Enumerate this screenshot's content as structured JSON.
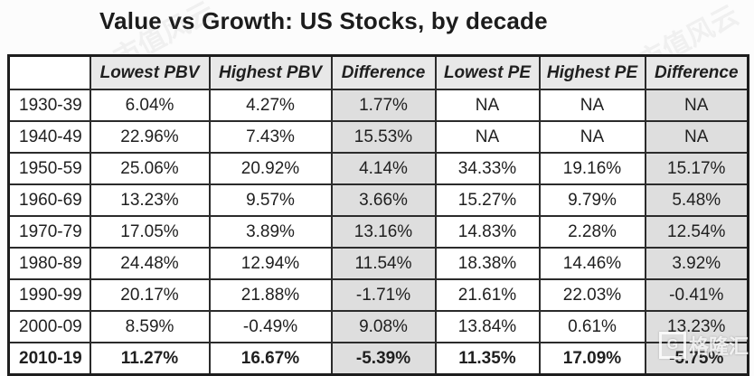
{
  "title": "Value vs Growth: US Stocks, by decade",
  "chart_data": {
    "type": "table",
    "title": "Value vs Growth: US Stocks, by decade",
    "columns": [
      "",
      "Lowest PBV",
      "Highest PBV",
      "Difference",
      "Lowest PE",
      "Highest PE",
      "Difference"
    ],
    "rows": [
      [
        "1930-39",
        "6.04%",
        "4.27%",
        "1.77%",
        "NA",
        "NA",
        "NA"
      ],
      [
        "1940-49",
        "22.96%",
        "7.43%",
        "15.53%",
        "NA",
        "NA",
        "NA"
      ],
      [
        "1950-59",
        "25.06%",
        "20.92%",
        "4.14%",
        "34.33%",
        "19.16%",
        "15.17%"
      ],
      [
        "1960-69",
        "13.23%",
        "9.57%",
        "3.66%",
        "15.27%",
        "9.79%",
        "5.48%"
      ],
      [
        "1970-79",
        "17.05%",
        "3.89%",
        "13.16%",
        "14.83%",
        "2.28%",
        "12.54%"
      ],
      [
        "1980-89",
        "24.48%",
        "12.94%",
        "11.54%",
        "18.38%",
        "14.46%",
        "3.92%"
      ],
      [
        "1990-99",
        "20.17%",
        "21.88%",
        "-1.71%",
        "21.61%",
        "22.03%",
        "-0.41%"
      ],
      [
        "2000-09",
        "8.59%",
        "-0.49%",
        "9.08%",
        "13.84%",
        "0.61%",
        "13.23%"
      ],
      [
        "2010-19",
        "11.27%",
        "16.67%",
        "-5.39%",
        "11.35%",
        "17.09%",
        "-5.75%"
      ]
    ],
    "bold_row_index": 8,
    "shaded_column_indexes": [
      3,
      6
    ],
    "layout_hints": {
      "header_style": "italic bold, gray background",
      "grid": "on"
    }
  },
  "watermarks": {
    "logo_text": "格隆汇",
    "logo_icon": "G",
    "diagonal_text": "市值风云"
  },
  "colors": {
    "header_bg": "#e8e8e8",
    "shaded_column_bg": "#dedede",
    "border": "#2b2b2b",
    "text": "#1f1f1f",
    "background": "#fcfcfc"
  }
}
